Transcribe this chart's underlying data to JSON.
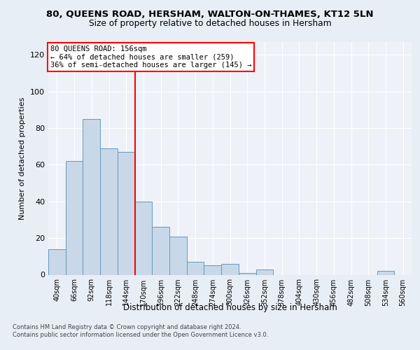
{
  "title1": "80, QUEENS ROAD, HERSHAM, WALTON-ON-THAMES, KT12 5LN",
  "title2": "Size of property relative to detached houses in Hersham",
  "xlabel": "Distribution of detached houses by size in Hersham",
  "ylabel": "Number of detached properties",
  "categories": [
    "40sqm",
    "66sqm",
    "92sqm",
    "118sqm",
    "144sqm",
    "170sqm",
    "196sqm",
    "222sqm",
    "248sqm",
    "274sqm",
    "300sqm",
    "326sqm",
    "352sqm",
    "378sqm",
    "404sqm",
    "430sqm",
    "456sqm",
    "482sqm",
    "508sqm",
    "534sqm",
    "560sqm"
  ],
  "values": [
    14,
    62,
    85,
    69,
    67,
    40,
    26,
    21,
    7,
    5,
    6,
    1,
    3,
    0,
    0,
    0,
    0,
    0,
    0,
    2,
    0
  ],
  "bar_color": "#c8d8e8",
  "bar_edge_color": "#6699bb",
  "red_line_x": 4.5,
  "annotation_title": "80 QUEENS ROAD: 156sqm",
  "annotation_line1": "← 64% of detached houses are smaller (259)",
  "annotation_line2": "36% of semi-detached houses are larger (145) →",
  "ylim": [
    0,
    127
  ],
  "yticks": [
    0,
    20,
    40,
    60,
    80,
    100,
    120
  ],
  "bg_color": "#e8eef5",
  "plot_bg_color": "#eef2f8",
  "footer1": "Contains HM Land Registry data © Crown copyright and database right 2024.",
  "footer2": "Contains public sector information licensed under the Open Government Licence v3.0."
}
